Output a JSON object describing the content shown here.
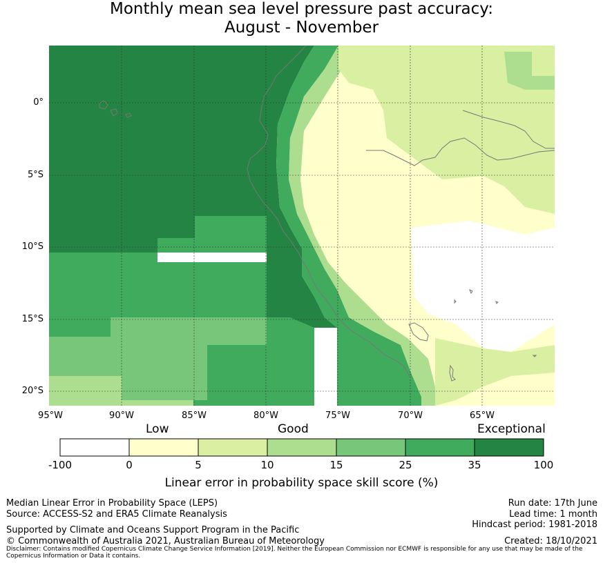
{
  "title": {
    "line1": "Monthly mean sea level pressure past accuracy:",
    "line2": "August - November"
  },
  "map": {
    "lat_labels": [
      "0°",
      "5°S",
      "10°S",
      "15°S",
      "20°S"
    ],
    "lon_labels": [
      "95°W",
      "90°W",
      "85°W",
      "80°W",
      "75°W",
      "70°W",
      "65°W"
    ],
    "colors": {
      "exceptional": "#238443",
      "35_25": "#41ab5d",
      "25_15": "#78c679",
      "15_10": "#addd8e",
      "10_5": "#d9f0a3",
      "5_0": "#ffffcc",
      "below_0": "#ffffff",
      "coastline": "#777777"
    }
  },
  "colorbar": {
    "category_labels": [
      "Low",
      "Good",
      "Exceptional"
    ],
    "ticks": [
      "-100",
      "0",
      "5",
      "10",
      "15",
      "25",
      "35",
      "100"
    ],
    "colors": [
      "#ffffff",
      "#ffffcc",
      "#d9f0a3",
      "#addd8e",
      "#78c679",
      "#41ab5d",
      "#238443"
    ],
    "title": "Linear error in probability space skill score (%)"
  },
  "footer": {
    "left1": "Median Linear Error in Probability Space (LEPS)",
    "left2": "Source: ACCESS-S2 and ERA5 Climate Reanalysis",
    "left3": "Supported by Climate and Oceans Support Program in the Pacific",
    "left4": "© Commonwealth of Australia 2021, Australian Bureau of Meteorology",
    "disclaimer": "Disclaimer: Contains modified Copernicus Climate Change Service Information [2019]. Neither the European Commission nor ECMWF is responsible for any use that may be made of the Copernicus Information or Data it contains.",
    "right1": "Run date: 17th June",
    "right2": "Lead time: 1 month",
    "right3": "Hindcast period: 1981-2018",
    "right4": "Created: 18/10/2021"
  }
}
